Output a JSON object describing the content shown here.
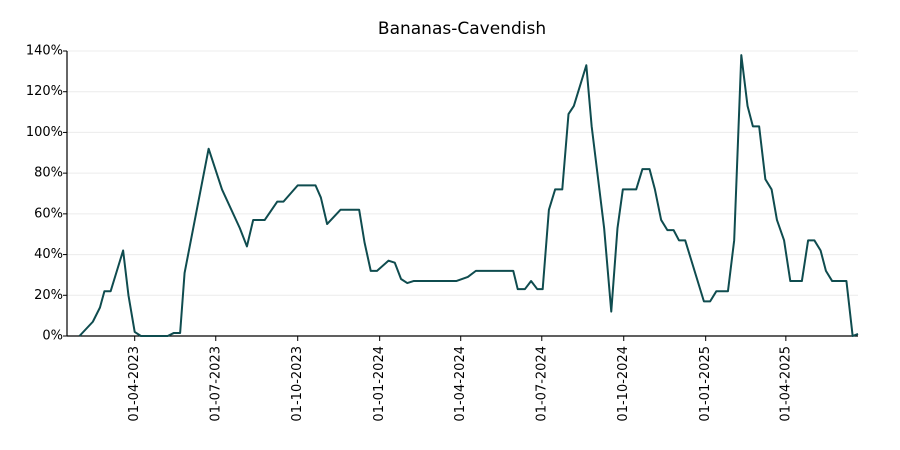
{
  "chart_data": {
    "type": "line",
    "title": "Bananas-Cavendish",
    "x": [
      "2023-01-29",
      "2023-02-13",
      "2023-02-21",
      "2023-02-26",
      "2023-03-05",
      "2023-03-12",
      "2023-03-19",
      "2023-03-25",
      "2023-04-01",
      "2023-04-08",
      "2023-05-08",
      "2023-05-15",
      "2023-05-22",
      "2023-05-27",
      "2023-06-23",
      "2023-07-08",
      "2023-07-28",
      "2023-08-05",
      "2023-08-12",
      "2023-08-25",
      "2023-09-08",
      "2023-09-15",
      "2023-10-01",
      "2023-10-21",
      "2023-10-27",
      "2023-11-03",
      "2023-11-18",
      "2023-12-09",
      "2023-12-15",
      "2023-12-22",
      "2023-12-29",
      "2024-01-11",
      "2024-01-18",
      "2024-01-25",
      "2024-02-01",
      "2024-02-08",
      "2024-03-27",
      "2024-04-09",
      "2024-04-18",
      "2024-05-30",
      "2024-06-04",
      "2024-06-12",
      "2024-06-19",
      "2024-06-26",
      "2024-07-02",
      "2024-07-09",
      "2024-07-16",
      "2024-07-24",
      "2024-07-31",
      "2024-08-06",
      "2024-08-20",
      "2024-08-26",
      "2024-09-02",
      "2024-09-09",
      "2024-09-17",
      "2024-09-24",
      "2024-09-30",
      "2024-10-15",
      "2024-10-22",
      "2024-10-30",
      "2024-11-05",
      "2024-11-12",
      "2024-11-19",
      "2024-11-26",
      "2024-12-02",
      "2024-12-09",
      "2024-12-30",
      "2025-01-06",
      "2025-01-13",
      "2025-01-26",
      "2025-02-02",
      "2025-02-10",
      "2025-02-17",
      "2025-02-23",
      "2025-03-02",
      "2025-03-09",
      "2025-03-16",
      "2025-03-22",
      "2025-03-30",
      "2025-04-06",
      "2025-04-19",
      "2025-04-26",
      "2025-05-03",
      "2025-05-10",
      "2025-05-16",
      "2025-05-23",
      "2025-06-08",
      "2025-06-15",
      "2025-06-21"
    ],
    "series": [
      {
        "name": "Bananas-Cavendish",
        "color": "#0f4c4f",
        "values": [
          0,
          7,
          14,
          22,
          22,
          32,
          42,
          20,
          2,
          0,
          0,
          1.5,
          1.5,
          31,
          92,
          72,
          53,
          44,
          57,
          57,
          66,
          66,
          74,
          74,
          68,
          55,
          62,
          62,
          46,
          32,
          32,
          37,
          36,
          28,
          26,
          27,
          27,
          29,
          32,
          32,
          23,
          23,
          27,
          23,
          23,
          62,
          72,
          72,
          109,
          113,
          133,
          103,
          78,
          53,
          12,
          53,
          72,
          72,
          82,
          82,
          72,
          57,
          52,
          52,
          47,
          47,
          17,
          17,
          22,
          22,
          47,
          138,
          113,
          103,
          103,
          77,
          72,
          57,
          47,
          27,
          27,
          47,
          47,
          42,
          32,
          27,
          27,
          0,
          1
        ]
      }
    ],
    "xlim": [
      "2023-01-15",
      "2025-06-21"
    ],
    "xticks": [
      {
        "value": "2023-04-01",
        "label": "01-04-2023"
      },
      {
        "value": "2023-07-01",
        "label": "01-07-2023"
      },
      {
        "value": "2023-10-01",
        "label": "01-10-2023"
      },
      {
        "value": "2024-01-01",
        "label": "01-01-2024"
      },
      {
        "value": "2024-04-01",
        "label": "01-04-2024"
      },
      {
        "value": "2024-07-01",
        "label": "01-07-2024"
      },
      {
        "value": "2024-10-01",
        "label": "01-10-2024"
      },
      {
        "value": "2025-01-01",
        "label": "01-01-2025"
      },
      {
        "value": "2025-04-01",
        "label": "01-04-2025"
      }
    ],
    "ylim": [
      0,
      140
    ],
    "yticks": [
      {
        "value": 0,
        "label": "0%"
      },
      {
        "value": 20,
        "label": "20%"
      },
      {
        "value": 40,
        "label": "40%"
      },
      {
        "value": 60,
        "label": "60%"
      },
      {
        "value": 80,
        "label": "80%"
      },
      {
        "value": 100,
        "label": "100%"
      },
      {
        "value": 120,
        "label": "120%"
      },
      {
        "value": 140,
        "label": "140%"
      }
    ],
    "grid": true
  }
}
